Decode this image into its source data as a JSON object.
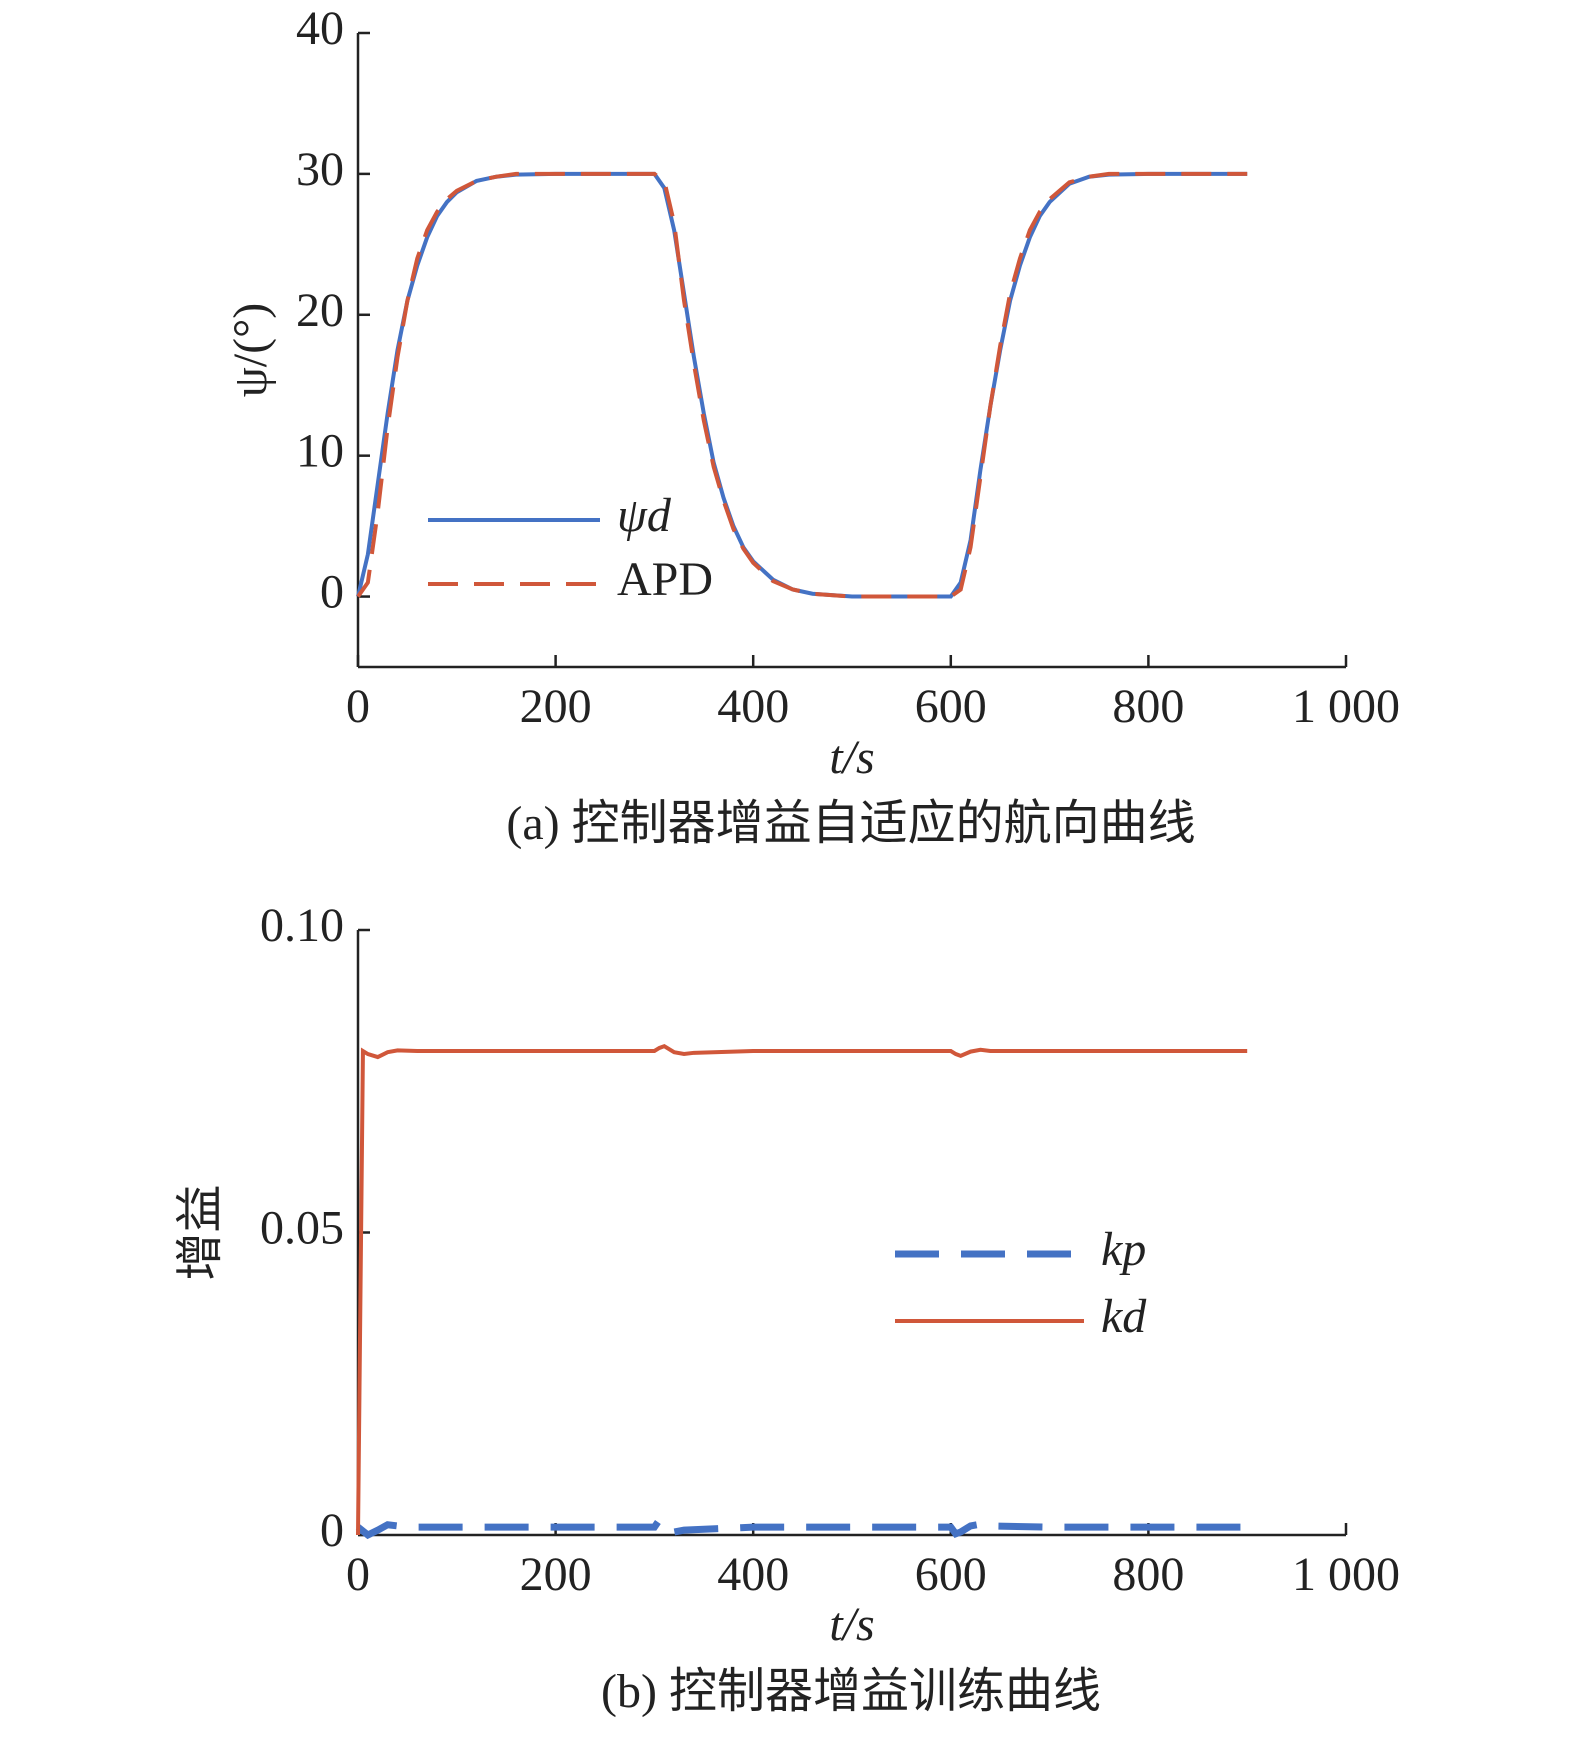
{
  "chart_data": [
    {
      "type": "line",
      "caption": "(a) 控制器增益自适应的航向曲线",
      "xlabel": "t/s",
      "ylabel": "ψ/(°)",
      "x": [
        0,
        10,
        20,
        30,
        40,
        50,
        60,
        70,
        80,
        90,
        100,
        120,
        140,
        160,
        200,
        250,
        300,
        310,
        320,
        330,
        340,
        350,
        360,
        370,
        380,
        390,
        400,
        420,
        440,
        460,
        500,
        550,
        600,
        610,
        620,
        630,
        640,
        650,
        660,
        670,
        680,
        690,
        700,
        720,
        740,
        760,
        800,
        850,
        900
      ],
      "series": [
        {
          "name": "ψd",
          "color": "#4472c4",
          "dash": false,
          "values": [
            0,
            3,
            8,
            13,
            17.5,
            21,
            23.5,
            25.5,
            27,
            28,
            28.7,
            29.5,
            29.8,
            29.95,
            30,
            30,
            30,
            29,
            26,
            21.5,
            17,
            13,
            9.5,
            7,
            5,
            3.5,
            2.5,
            1.2,
            0.5,
            0.2,
            0,
            0,
            0,
            1,
            4,
            9,
            13.5,
            17.5,
            21,
            23.5,
            25.5,
            27,
            28,
            29.3,
            29.8,
            29.95,
            30,
            30,
            30
          ]
        },
        {
          "name": "APD",
          "color": "#d0573a",
          "dash": true,
          "values": [
            0,
            1,
            6,
            12,
            17,
            21,
            24,
            26,
            27.3,
            28.2,
            28.8,
            29.5,
            29.8,
            30,
            30,
            30,
            30,
            29.5,
            26.5,
            21,
            16.5,
            12.5,
            9.2,
            6.8,
            4.8,
            3.4,
            2.4,
            1.1,
            0.5,
            0.2,
            0,
            0,
            0,
            0.5,
            3.5,
            8.5,
            13.5,
            17.8,
            21.5,
            24,
            26,
            27.3,
            28.2,
            29.4,
            29.8,
            30,
            30,
            30,
            30
          ]
        }
      ],
      "xlim": [
        0,
        1000
      ],
      "xticks": [
        0,
        200,
        400,
        600,
        800,
        {
          "value": 1000,
          "label": "1 000"
        }
      ],
      "ylim": [
        -5,
        40
      ],
      "yticks": [
        0,
        10,
        20,
        30,
        40
      ]
    },
    {
      "type": "line",
      "caption": "(b) 控制器增益训练曲线",
      "xlabel": "t/s",
      "ylabel": "增益",
      "series": [
        {
          "name": "kp",
          "color": "#4472c4",
          "dash": true,
          "x": [
            0,
            10,
            20,
            30,
            40,
            60,
            100,
            200,
            300,
            305,
            310,
            320,
            330,
            400,
            500,
            600,
            605,
            610,
            620,
            630,
            640,
            700,
            800,
            900
          ],
          "values": [
            0.0013,
            0,
            0.0008,
            0.0017,
            0.0015,
            0.0013,
            0.0013,
            0.0013,
            0.0013,
            0.0025,
            0.002,
            0.0005,
            0.0008,
            0.0013,
            0.0013,
            0.0013,
            0.0002,
            0.0005,
            0.0015,
            0.0018,
            0.0015,
            0.0013,
            0.0013,
            0.0013
          ]
        },
        {
          "name": "kd",
          "color": "#d0573a",
          "dash": false,
          "x": [
            0,
            5,
            10,
            20,
            30,
            40,
            60,
            100,
            200,
            300,
            305,
            310,
            320,
            330,
            340,
            400,
            500,
            600,
            605,
            610,
            620,
            630,
            640,
            700,
            800,
            900
          ],
          "values": [
            0,
            0.08,
            0.0795,
            0.079,
            0.0798,
            0.0801,
            0.08,
            0.08,
            0.08,
            0.08,
            0.0805,
            0.0808,
            0.0798,
            0.0795,
            0.0797,
            0.08,
            0.08,
            0.08,
            0.0795,
            0.0792,
            0.0799,
            0.0802,
            0.08,
            0.08,
            0.08,
            0.08
          ]
        }
      ],
      "xlim": [
        0,
        1000
      ],
      "xticks": [
        0,
        200,
        400,
        600,
        800,
        {
          "value": 1000,
          "label": "1 000"
        }
      ],
      "ylim": [
        0,
        0.1
      ],
      "yticks": [
        0,
        0.05,
        {
          "value": 0.1,
          "label": "0.10"
        }
      ]
    }
  ]
}
